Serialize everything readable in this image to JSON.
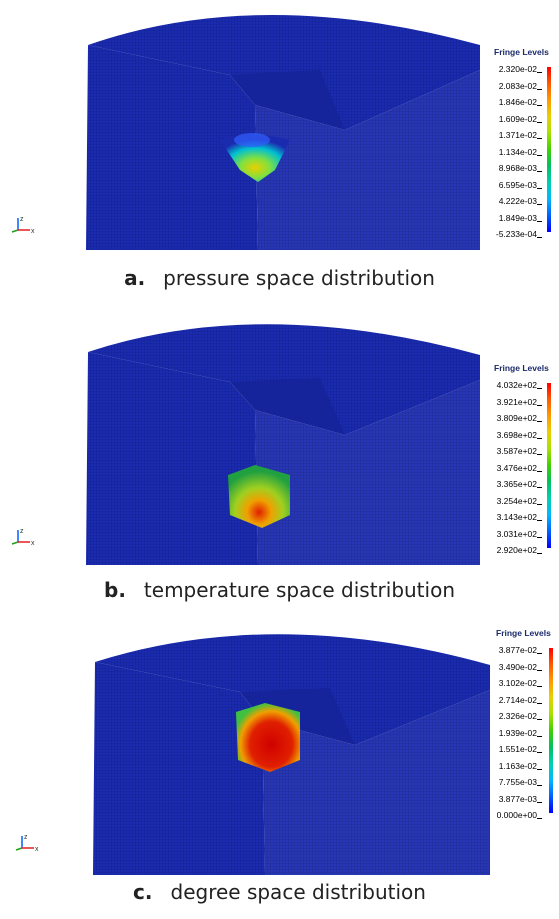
{
  "panels": [
    {
      "letter": "a.",
      "caption": "pressure space distribution",
      "legend_title": "Fringe Levels",
      "levels": [
        "2.320e-02",
        "2.083e-02",
        "1.846e-02",
        "1.609e-02",
        "1.371e-02",
        "1.134e-02",
        "8.968e-03",
        "6.595e-03",
        "4.222e-03",
        "1.849e-03",
        "-5.233e-04"
      ],
      "hotspot": "pressure"
    },
    {
      "letter": "b.",
      "caption": "temperature space distribution",
      "legend_title": "Fringe Levels",
      "levels": [
        "4.032e+02",
        "3.921e+02",
        "3.809e+02",
        "3.698e+02",
        "3.587e+02",
        "3.476e+02",
        "3.365e+02",
        "3.254e+02",
        "3.143e+02",
        "3.031e+02",
        "2.920e+02"
      ],
      "hotspot": "temperature"
    },
    {
      "letter": "c.",
      "caption": "degree space distribution",
      "legend_title": "Fringe Levels",
      "levels": [
        "3.877e-02",
        "3.490e-02",
        "3.102e-02",
        "2.714e-02",
        "2.326e-02",
        "1.939e-02",
        "1.551e-02",
        "1.163e-02",
        "7.755e-03",
        "3.877e-03",
        "0.000e+00"
      ],
      "hotspot": "degree"
    }
  ],
  "colors": {
    "mesh_blue": "#1b2bb0",
    "mesh_dark": "#101c80",
    "colorbar": [
      "#ff0000",
      "#ff5a00",
      "#ff9a00",
      "#e8d000",
      "#a8e000",
      "#40d000",
      "#00c060",
      "#00d0b0",
      "#00b8ff",
      "#0060ff",
      "#0000ff"
    ]
  }
}
